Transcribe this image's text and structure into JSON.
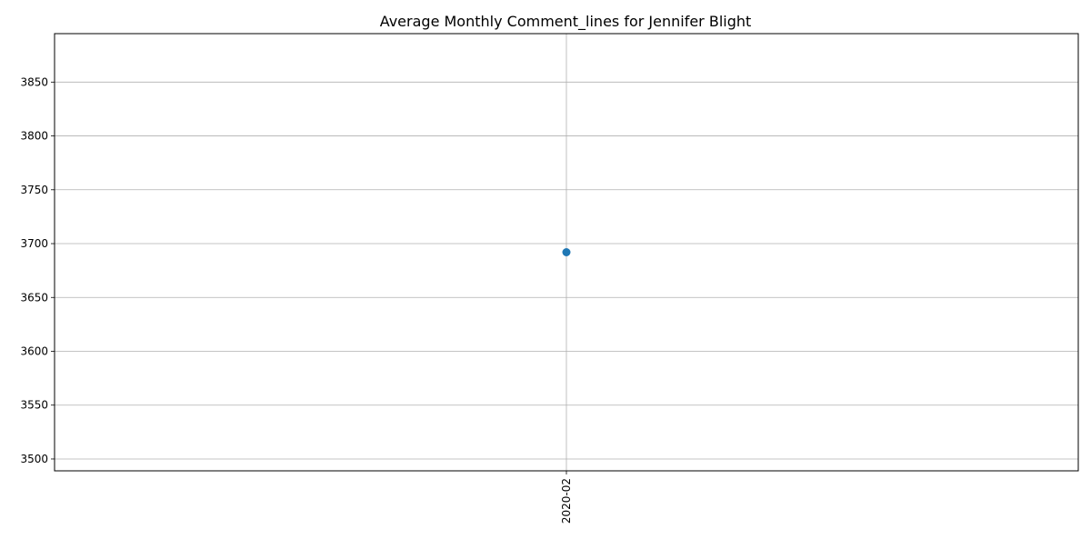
{
  "chart_data": {
    "type": "line",
    "title": "Average Monthly Comment_lines for Jennifer Blight",
    "xlabel": "",
    "ylabel": "",
    "categories": [
      "2020-02"
    ],
    "series": [
      {
        "values": [
          3692
        ],
        "color": "#1f77b4",
        "marker": "circle"
      }
    ],
    "ylim": [
      3489,
      3895
    ],
    "yticks": [
      3500,
      3550,
      3600,
      3650,
      3700,
      3750,
      3800,
      3850
    ],
    "grid": true,
    "x_tick_rotation_degrees": 90
  }
}
